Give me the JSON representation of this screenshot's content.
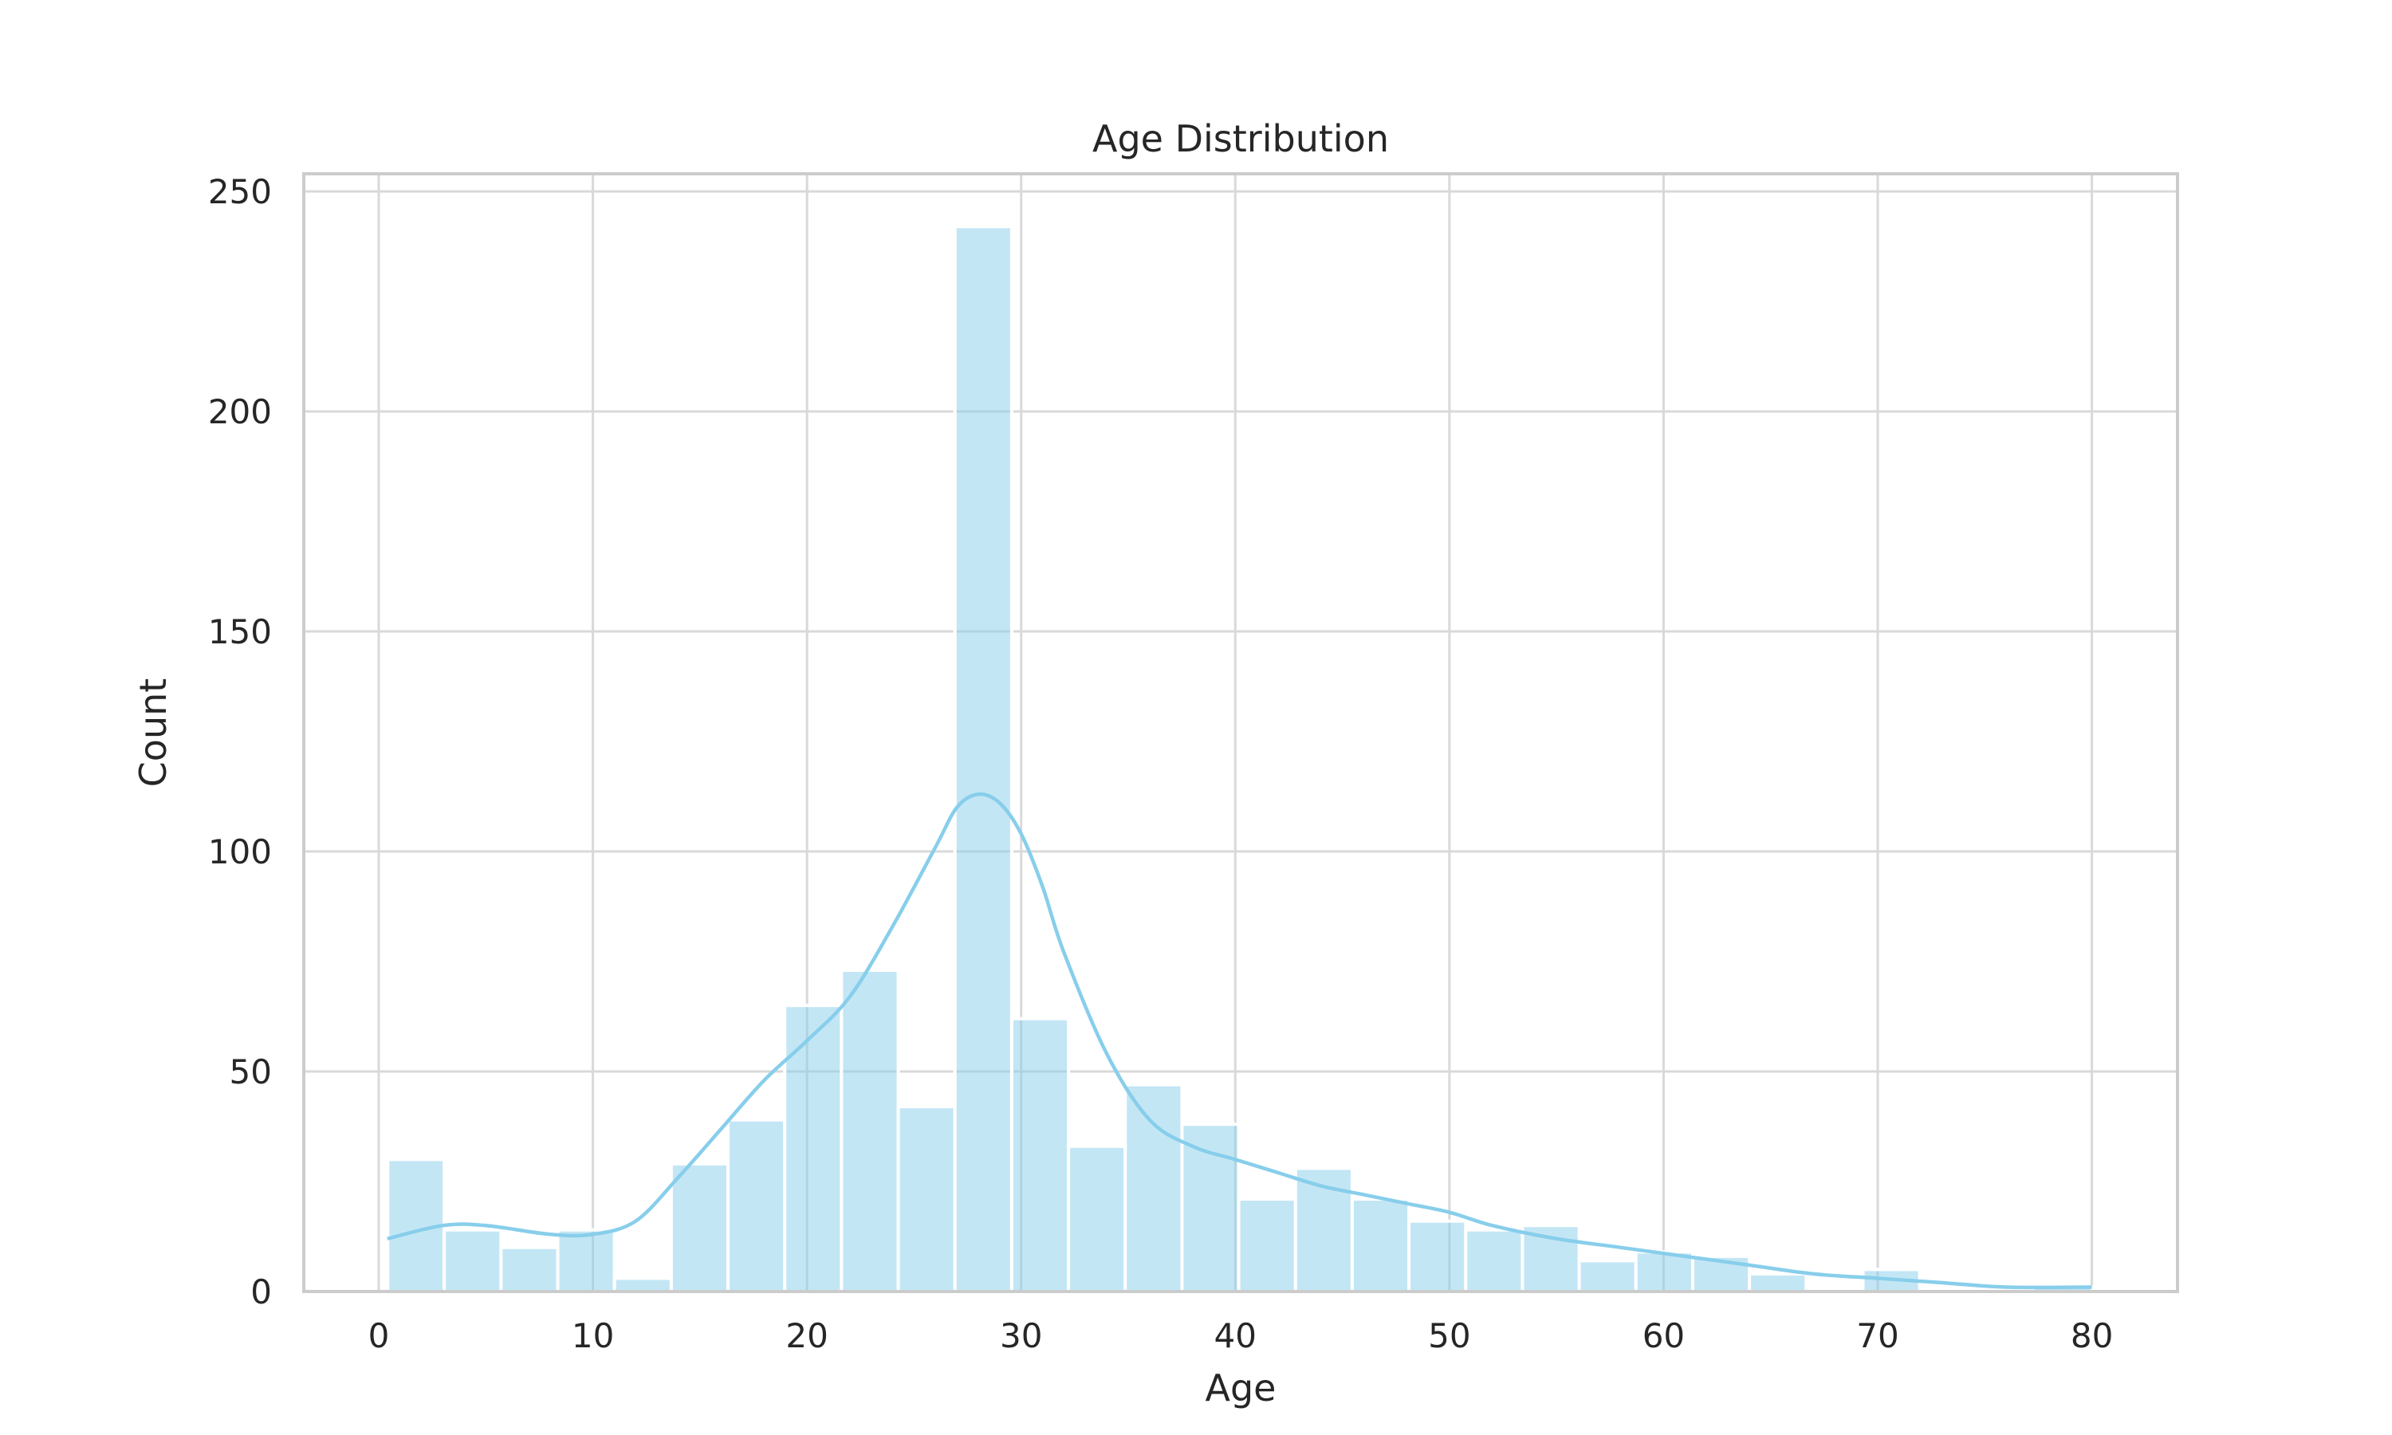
{
  "chart_data": {
    "type": "bar",
    "title": "Age Distribution",
    "xlabel": "Age",
    "ylabel": "Count",
    "xlim": [
      -3.5,
      84
    ],
    "ylim": [
      0,
      254
    ],
    "xticks": [
      0,
      10,
      20,
      30,
      40,
      50,
      60,
      70,
      80
    ],
    "yticks": [
      0,
      50,
      100,
      150,
      200,
      250
    ],
    "grid": true,
    "bar_color": "#87CEEB",
    "kde_color": "#87CEEB",
    "bins": [
      {
        "start": 0.42,
        "end": 3.06,
        "count": 30
      },
      {
        "start": 3.06,
        "end": 5.71,
        "count": 14
      },
      {
        "start": 5.71,
        "end": 8.36,
        "count": 10
      },
      {
        "start": 8.36,
        "end": 11.01,
        "count": 14
      },
      {
        "start": 11.01,
        "end": 13.66,
        "count": 3
      },
      {
        "start": 13.66,
        "end": 16.31,
        "count": 29
      },
      {
        "start": 16.31,
        "end": 18.96,
        "count": 39
      },
      {
        "start": 18.96,
        "end": 21.61,
        "count": 65
      },
      {
        "start": 21.61,
        "end": 24.26,
        "count": 73
      },
      {
        "start": 24.26,
        "end": 26.91,
        "count": 42
      },
      {
        "start": 26.91,
        "end": 29.56,
        "count": 242
      },
      {
        "start": 29.56,
        "end": 32.21,
        "count": 62
      },
      {
        "start": 32.21,
        "end": 34.86,
        "count": 33
      },
      {
        "start": 34.86,
        "end": 37.51,
        "count": 47
      },
      {
        "start": 37.51,
        "end": 40.16,
        "count": 38
      },
      {
        "start": 40.16,
        "end": 42.81,
        "count": 21
      },
      {
        "start": 42.81,
        "end": 45.46,
        "count": 28
      },
      {
        "start": 45.46,
        "end": 48.11,
        "count": 21
      },
      {
        "start": 48.11,
        "end": 50.76,
        "count": 16
      },
      {
        "start": 50.76,
        "end": 53.41,
        "count": 14
      },
      {
        "start": 53.41,
        "end": 56.06,
        "count": 15
      },
      {
        "start": 56.06,
        "end": 58.71,
        "count": 7
      },
      {
        "start": 58.71,
        "end": 61.36,
        "count": 9
      },
      {
        "start": 61.36,
        "end": 64.01,
        "count": 8
      },
      {
        "start": 64.01,
        "end": 66.66,
        "count": 4
      },
      {
        "start": 66.66,
        "end": 69.31,
        "count": 0
      },
      {
        "start": 69.31,
        "end": 71.96,
        "count": 5
      },
      {
        "start": 71.96,
        "end": 74.61,
        "count": 0
      },
      {
        "start": 74.61,
        "end": 77.26,
        "count": 0
      },
      {
        "start": 77.26,
        "end": 80.0,
        "count": 1
      }
    ],
    "kde": {
      "x": [
        0.4,
        3,
        5,
        8,
        10,
        12,
        14,
        16,
        18,
        20,
        22,
        24,
        26,
        27,
        28,
        29,
        30,
        31,
        32,
        34,
        36,
        38,
        40,
        42,
        44,
        46,
        48,
        50,
        52,
        55,
        58,
        61,
        64,
        67,
        70,
        73,
        76,
        80
      ],
      "y": [
        12,
        15,
        15,
        13,
        13,
        16,
        26,
        37,
        48,
        57,
        67,
        83,
        101,
        110,
        113,
        111,
        104,
        92,
        77,
        54,
        39,
        33,
        30,
        27,
        24,
        22,
        20,
        18,
        15,
        12,
        10,
        8,
        6,
        4,
        3,
        2,
        1,
        1
      ]
    }
  }
}
